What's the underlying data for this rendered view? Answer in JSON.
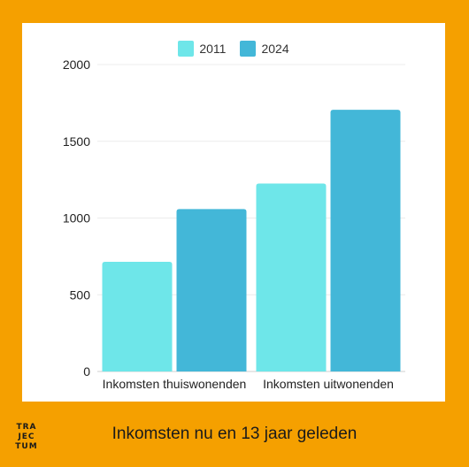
{
  "chart_data": {
    "type": "bar",
    "categories": [
      "Inkomsten thuiswonenden",
      "Inkomsten uitwonenden"
    ],
    "series": [
      {
        "name": "2011",
        "values": [
          715,
          1225
        ],
        "color": "#6ee6e9"
      },
      {
        "name": "2024",
        "values": [
          1058,
          1705
        ],
        "color": "#43b7d8"
      }
    ],
    "ylim": [
      0,
      2000
    ],
    "yticks": [
      0,
      500,
      1000,
      1500,
      2000
    ],
    "grid": true,
    "legend": "top-center"
  },
  "footer": {
    "title": "Inkomsten nu en 13 jaar geleden",
    "logo_lines": [
      "TRA",
      "JEC",
      "TUM"
    ]
  }
}
